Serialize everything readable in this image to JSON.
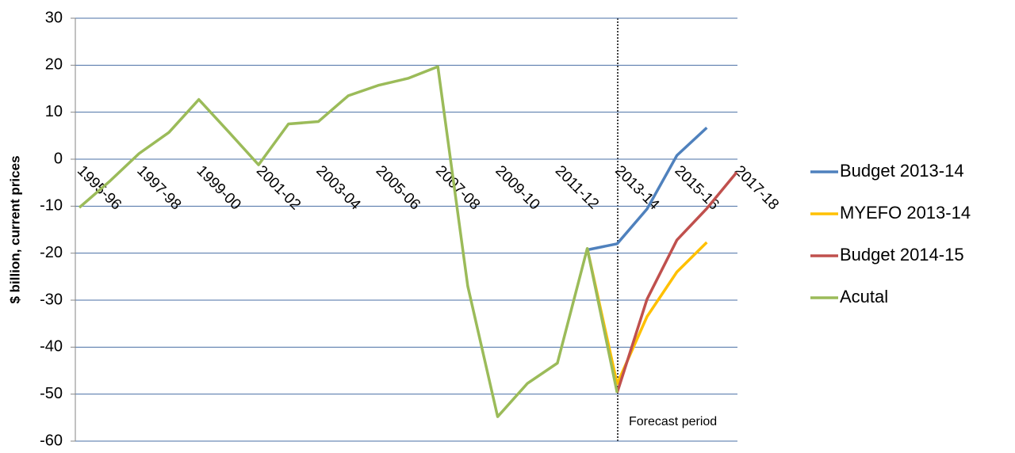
{
  "chart_data": {
    "type": "line",
    "y_label": "$ billion, current prices",
    "annotation": "Forecast period",
    "categories": [
      "1995-96",
      null,
      "1997-98",
      null,
      "1999-00",
      null,
      "2001-02",
      null,
      "2003-04",
      null,
      "2005-06",
      null,
      "2007-08",
      null,
      "2009-10",
      null,
      "2011-12",
      null,
      "2013-14",
      null,
      "2015-16",
      null,
      "2017-18"
    ],
    "series": [
      {
        "name": "Budget 2013-14",
        "color": "#4f81bd",
        "values": [
          null,
          null,
          null,
          null,
          null,
          null,
          null,
          null,
          null,
          null,
          null,
          null,
          null,
          null,
          null,
          null,
          null,
          -19.3,
          -18,
          -10.6,
          0.8,
          6.7,
          null
        ]
      },
      {
        "name": "MYEFO 2013-14",
        "color": "#ffc000",
        "values": [
          null,
          null,
          null,
          null,
          null,
          null,
          null,
          null,
          null,
          null,
          null,
          null,
          null,
          null,
          null,
          null,
          null,
          -19,
          -47.8,
          -33.5,
          -24,
          -17.7,
          null
        ]
      },
      {
        "name": "Budget 2014-15",
        "color": "#c0504d",
        "values": [
          null,
          null,
          null,
          null,
          null,
          null,
          null,
          null,
          null,
          null,
          null,
          null,
          null,
          null,
          null,
          null,
          null,
          null,
          -49.7,
          -29.8,
          -17.2,
          -10.5,
          -2.8
        ]
      },
      {
        "name": "Acutal",
        "color": "#9bbb59",
        "values": [
          -10.3,
          -4.8,
          1.2,
          5.7,
          12.7,
          5.8,
          -1.2,
          7.5,
          8,
          13.5,
          15.7,
          17.2,
          19.7,
          -27,
          -54.8,
          -47.7,
          -43.4,
          -19,
          -49.7,
          null,
          null,
          null,
          null
        ]
      }
    ],
    "ylim": [
      -60,
      30
    ],
    "yticks": [
      -60,
      -50,
      -40,
      -30,
      -20,
      -10,
      0,
      10,
      20,
      30
    ],
    "grid": true,
    "legend": "right"
  }
}
